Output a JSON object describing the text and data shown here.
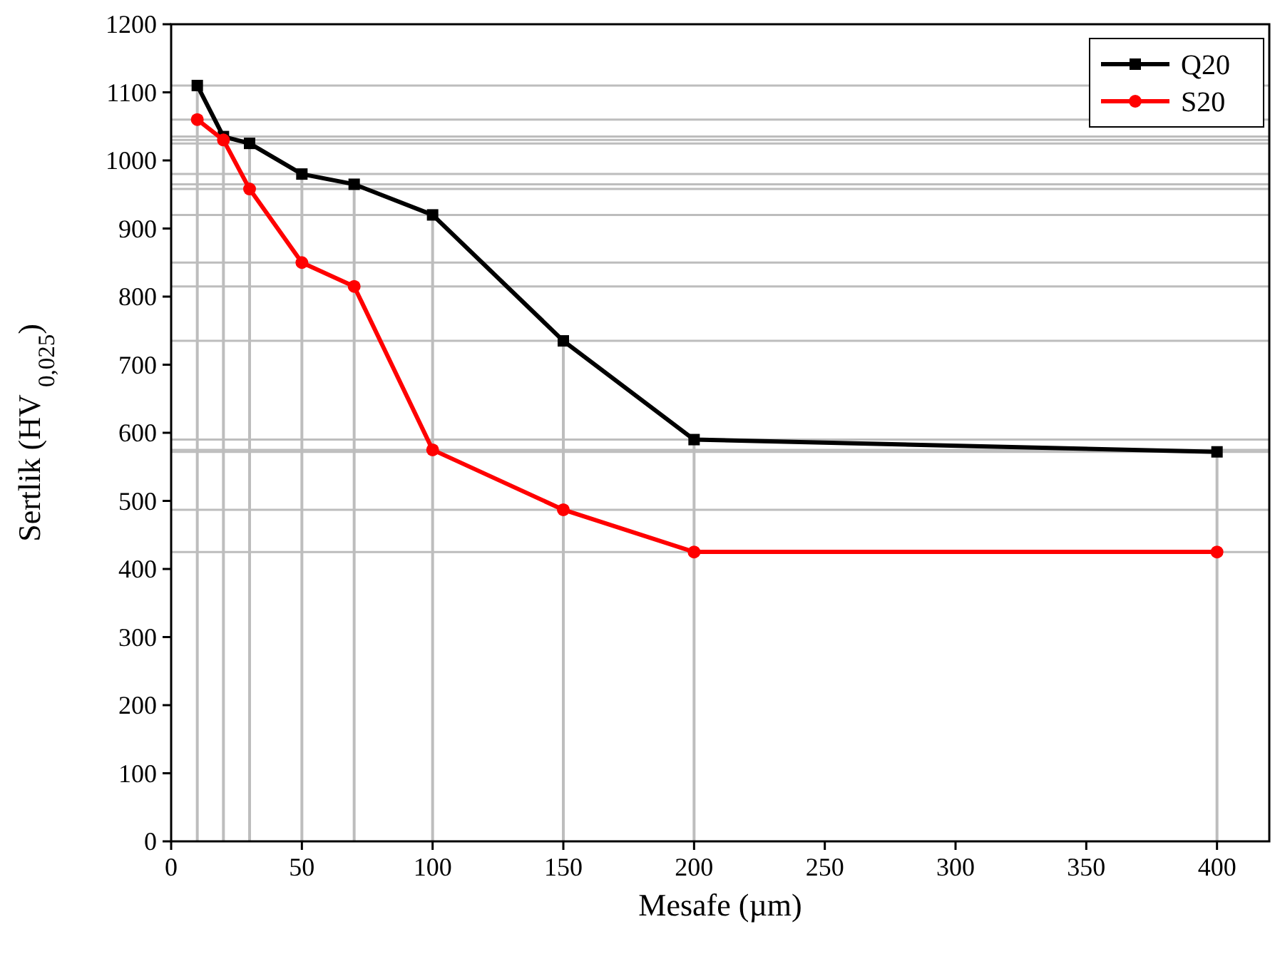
{
  "chart_data": {
    "type": "line",
    "xlabel": "Mesafe (µm)",
    "ylabel": "Sertlik (HV $_{0,025}$)",
    "x": [
      10,
      20,
      30,
      50,
      70,
      100,
      150,
      200,
      400
    ],
    "series": [
      {
        "name": "Q20",
        "color": "#000000",
        "marker": "square",
        "values": [
          1110,
          1035,
          1025,
          980,
          965,
          920,
          735,
          590,
          572
        ]
      },
      {
        "name": "S20",
        "color": "#ff0000",
        "marker": "circle",
        "values": [
          1060,
          1030,
          958,
          850,
          815,
          575,
          487,
          425,
          425
        ]
      }
    ],
    "xlim": [
      0,
      420
    ],
    "xticks": [
      0,
      50,
      100,
      150,
      200,
      250,
      300,
      350,
      400
    ],
    "ylim": [
      0,
      1200
    ],
    "yticks": [
      0,
      100,
      200,
      300,
      400,
      500,
      600,
      700,
      800,
      900,
      1000,
      1100,
      1200
    ],
    "legend": "top right",
    "line_style": "solid",
    "ref_lines": [
      {
        "axis": "x",
        "value": 10,
        "color": "#bdbdbd"
      },
      {
        "axis": "x",
        "value": 20,
        "color": "#bdbdbd"
      },
      {
        "axis": "x",
        "value": 30,
        "color": "#bdbdbd"
      },
      {
        "axis": "x",
        "value": 50,
        "color": "#bdbdbd"
      },
      {
        "axis": "x",
        "value": 70,
        "color": "#bdbdbd"
      },
      {
        "axis": "x",
        "value": 100,
        "color": "#bdbdbd"
      },
      {
        "axis": "x",
        "value": 150,
        "color": "#bdbdbd"
      },
      {
        "axis": "x",
        "value": 200,
        "color": "#bdbdbd"
      },
      {
        "axis": "x",
        "value": 400,
        "color": "#bdbdbd"
      },
      {
        "axis": "y",
        "value": 1110,
        "color": "#bdbdbd"
      },
      {
        "axis": "y",
        "value": 1035,
        "color": "#bdbdbd"
      },
      {
        "axis": "y",
        "value": 1025,
        "color": "#bdbdbd"
      },
      {
        "axis": "y",
        "value": 980,
        "color": "#bdbdbd"
      },
      {
        "axis": "y",
        "value": 965,
        "color": "#bdbdbd"
      },
      {
        "axis": "y",
        "value": 920,
        "color": "#bdbdbd"
      },
      {
        "axis": "y",
        "value": 735,
        "color": "#bdbdbd"
      },
      {
        "axis": "y",
        "value": 590,
        "color": "#bdbdbd"
      },
      {
        "axis": "y",
        "value": 572,
        "color": "#bdbdbd"
      },
      {
        "axis": "y",
        "value": 1060,
        "color": "#bdbdbd"
      },
      {
        "axis": "y",
        "value": 1030,
        "color": "#bdbdbd"
      },
      {
        "axis": "y",
        "value": 958,
        "color": "#bdbdbd"
      },
      {
        "axis": "y",
        "value": 850,
        "color": "#bdbdbd"
      },
      {
        "axis": "y",
        "value": 815,
        "color": "#bdbdbd"
      },
      {
        "axis": "y",
        "value": 575,
        "color": "#bdbdbd"
      },
      {
        "axis": "y",
        "value": 487,
        "color": "#bdbdbd"
      },
      {
        "axis": "y",
        "value": 425,
        "color": "#bdbdbd"
      }
    ]
  }
}
